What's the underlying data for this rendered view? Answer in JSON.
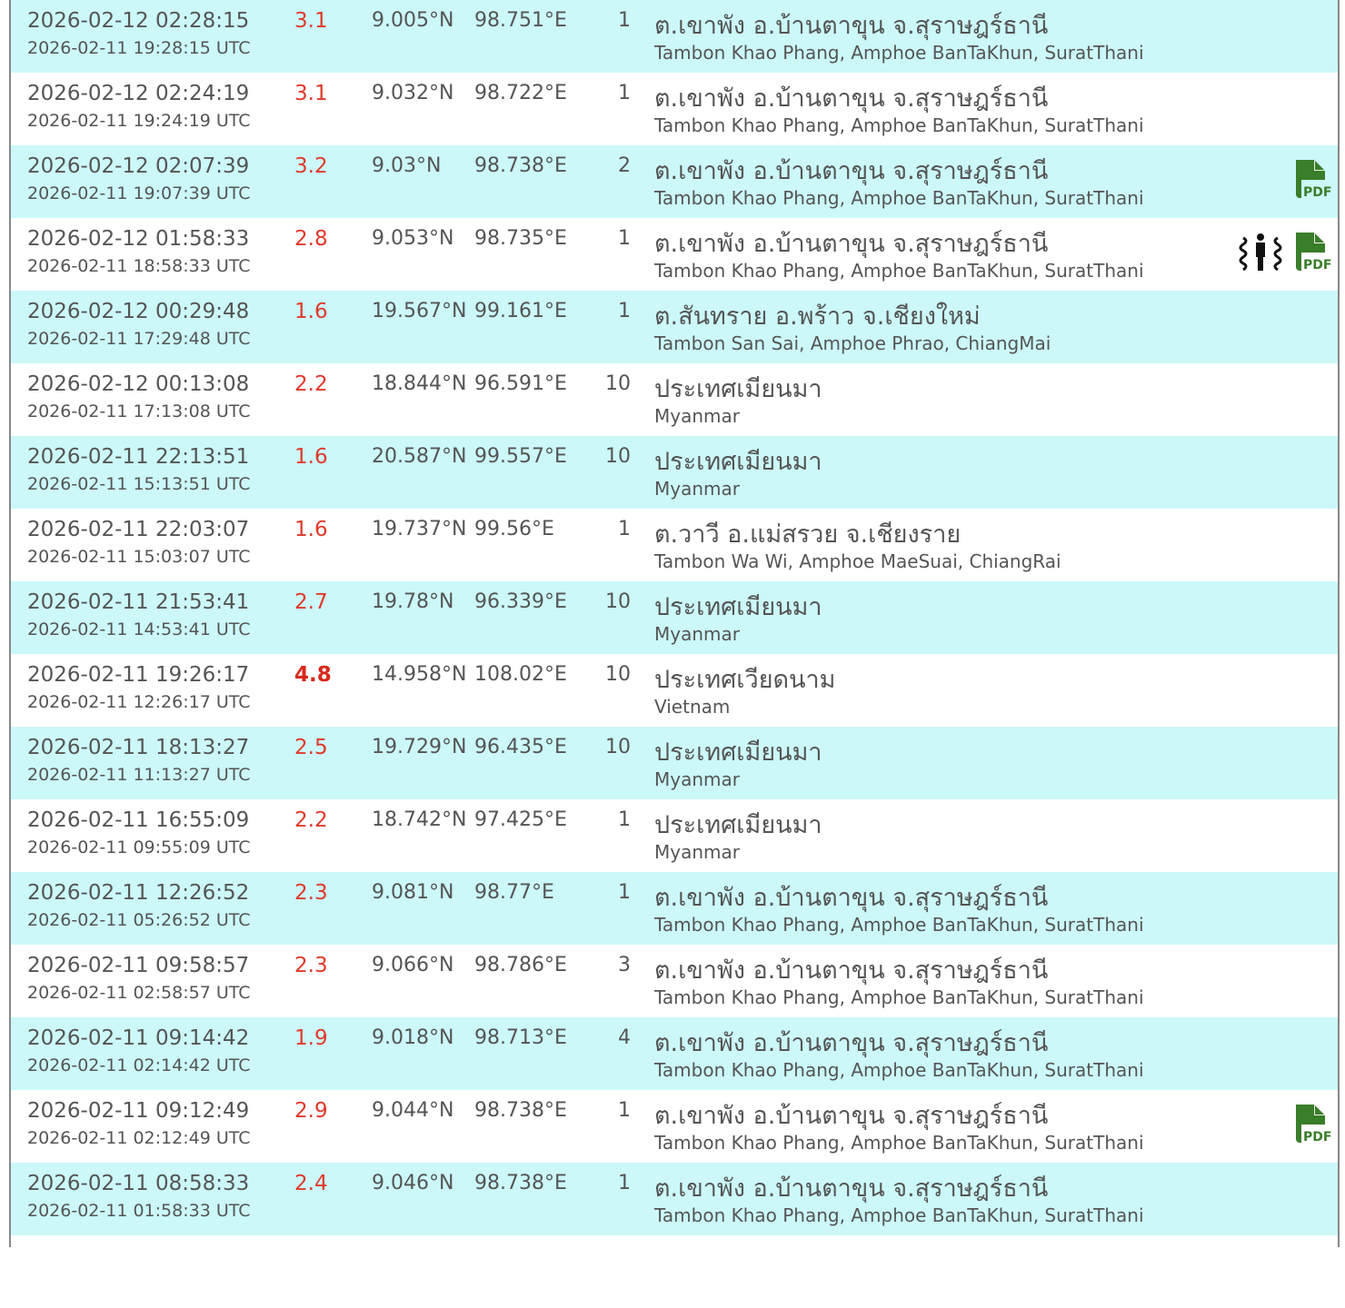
{
  "colors": {
    "row_alt": "#ccf8fa",
    "magnitude": "#e03a2c",
    "pdf": "#3a7d2a"
  },
  "rows": [
    {
      "local": "2026-02-12 02:28:15",
      "utc": "2026-02-11 19:28:15 UTC",
      "mag": "3.1",
      "lat": "9.005°N",
      "lon": "98.751°E",
      "depth": "1",
      "th": "ต.เขาพัง อ.บ้านตาขุน จ.สุราษฎร์ธานี",
      "en": "Tambon Khao Phang, Amphoe BanTaKhun, SuratThani",
      "icons": []
    },
    {
      "local": "2026-02-12 02:24:19",
      "utc": "2026-02-11 19:24:19 UTC",
      "mag": "3.1",
      "lat": "9.032°N",
      "lon": "98.722°E",
      "depth": "1",
      "th": "ต.เขาพัง อ.บ้านตาขุน จ.สุราษฎร์ธานี",
      "en": "Tambon Khao Phang, Amphoe BanTaKhun, SuratThani",
      "icons": []
    },
    {
      "local": "2026-02-12 02:07:39",
      "utc": "2026-02-11 19:07:39 UTC",
      "mag": "3.2",
      "lat": "9.03°N",
      "lon": "98.738°E",
      "depth": "2",
      "th": "ต.เขาพัง อ.บ้านตาขุน จ.สุราษฎร์ธานี",
      "en": "Tambon Khao Phang, Amphoe BanTaKhun, SuratThani",
      "icons": [
        "pdf"
      ]
    },
    {
      "local": "2026-02-12 01:58:33",
      "utc": "2026-02-11 18:58:33 UTC",
      "mag": "2.8",
      "lat": "9.053°N",
      "lon": "98.735°E",
      "depth": "1",
      "th": "ต.เขาพัง อ.บ้านตาขุน จ.สุราษฎร์ธานี",
      "en": "Tambon Khao Phang, Amphoe BanTaKhun, SuratThani",
      "icons": [
        "felt",
        "pdf"
      ]
    },
    {
      "local": "2026-02-12 00:29:48",
      "utc": "2026-02-11 17:29:48 UTC",
      "mag": "1.6",
      "lat": "19.567°N",
      "lon": "99.161°E",
      "depth": "1",
      "th": "ต.สันทราย อ.พร้าว จ.เชียงใหม่",
      "en": "Tambon San Sai, Amphoe Phrao, ChiangMai",
      "icons": []
    },
    {
      "local": "2026-02-12 00:13:08",
      "utc": "2026-02-11 17:13:08 UTC",
      "mag": "2.2",
      "lat": "18.844°N",
      "lon": "96.591°E",
      "depth": "10",
      "th": "ประเทศเมียนมา",
      "en": "Myanmar",
      "icons": []
    },
    {
      "local": "2026-02-11 22:13:51",
      "utc": "2026-02-11 15:13:51 UTC",
      "mag": "1.6",
      "lat": "20.587°N",
      "lon": "99.557°E",
      "depth": "10",
      "th": "ประเทศเมียนมา",
      "en": "Myanmar",
      "icons": []
    },
    {
      "local": "2026-02-11 22:03:07",
      "utc": "2026-02-11 15:03:07 UTC",
      "mag": "1.6",
      "lat": "19.737°N",
      "lon": "99.56°E",
      "depth": "1",
      "th": "ต.วาวี อ.แม่สรวย จ.เชียงราย",
      "en": "Tambon Wa Wi, Amphoe MaeSuai, ChiangRai",
      "icons": []
    },
    {
      "local": "2026-02-11 21:53:41",
      "utc": "2026-02-11 14:53:41 UTC",
      "mag": "2.7",
      "lat": "19.78°N",
      "lon": "96.339°E",
      "depth": "10",
      "th": "ประเทศเมียนมา",
      "en": "Myanmar",
      "icons": []
    },
    {
      "local": "2026-02-11 19:26:17",
      "utc": "2026-02-11 12:26:17 UTC",
      "mag": "4.8",
      "lat": "14.958°N",
      "lon": "108.02°E",
      "depth": "10",
      "th": "ประเทศเวียดนาม",
      "en": "Vietnam",
      "icons": []
    },
    {
      "local": "2026-02-11 18:13:27",
      "utc": "2026-02-11 11:13:27 UTC",
      "mag": "2.5",
      "lat": "19.729°N",
      "lon": "96.435°E",
      "depth": "10",
      "th": "ประเทศเมียนมา",
      "en": "Myanmar",
      "icons": []
    },
    {
      "local": "2026-02-11 16:55:09",
      "utc": "2026-02-11 09:55:09 UTC",
      "mag": "2.2",
      "lat": "18.742°N",
      "lon": "97.425°E",
      "depth": "1",
      "th": "ประเทศเมียนมา",
      "en": "Myanmar",
      "icons": []
    },
    {
      "local": "2026-02-11 12:26:52",
      "utc": "2026-02-11 05:26:52 UTC",
      "mag": "2.3",
      "lat": "9.081°N",
      "lon": "98.77°E",
      "depth": "1",
      "th": "ต.เขาพัง อ.บ้านตาขุน จ.สุราษฎร์ธานี",
      "en": "Tambon Khao Phang, Amphoe BanTaKhun, SuratThani",
      "icons": []
    },
    {
      "local": "2026-02-11 09:58:57",
      "utc": "2026-02-11 02:58:57 UTC",
      "mag": "2.3",
      "lat": "9.066°N",
      "lon": "98.786°E",
      "depth": "3",
      "th": "ต.เขาพัง อ.บ้านตาขุน จ.สุราษฎร์ธานี",
      "en": "Tambon Khao Phang, Amphoe BanTaKhun, SuratThani",
      "icons": []
    },
    {
      "local": "2026-02-11 09:14:42",
      "utc": "2026-02-11 02:14:42 UTC",
      "mag": "1.9",
      "lat": "9.018°N",
      "lon": "98.713°E",
      "depth": "4",
      "th": "ต.เขาพัง อ.บ้านตาขุน จ.สุราษฎร์ธานี",
      "en": "Tambon Khao Phang, Amphoe BanTaKhun, SuratThani",
      "icons": []
    },
    {
      "local": "2026-02-11 09:12:49",
      "utc": "2026-02-11 02:12:49 UTC",
      "mag": "2.9",
      "lat": "9.044°N",
      "lon": "98.738°E",
      "depth": "1",
      "th": "ต.เขาพัง อ.บ้านตาขุน จ.สุราษฎร์ธานี",
      "en": "Tambon Khao Phang, Amphoe BanTaKhun, SuratThani",
      "icons": [
        "pdf"
      ]
    },
    {
      "local": "2026-02-11 08:58:33",
      "utc": "2026-02-11 01:58:33 UTC",
      "mag": "2.4",
      "lat": "9.046°N",
      "lon": "98.738°E",
      "depth": "1",
      "th": "ต.เขาพัง อ.บ้านตาขุน จ.สุราษฎร์ธานี",
      "en": "Tambon Khao Phang, Amphoe BanTaKhun, SuratThani",
      "icons": []
    }
  ]
}
